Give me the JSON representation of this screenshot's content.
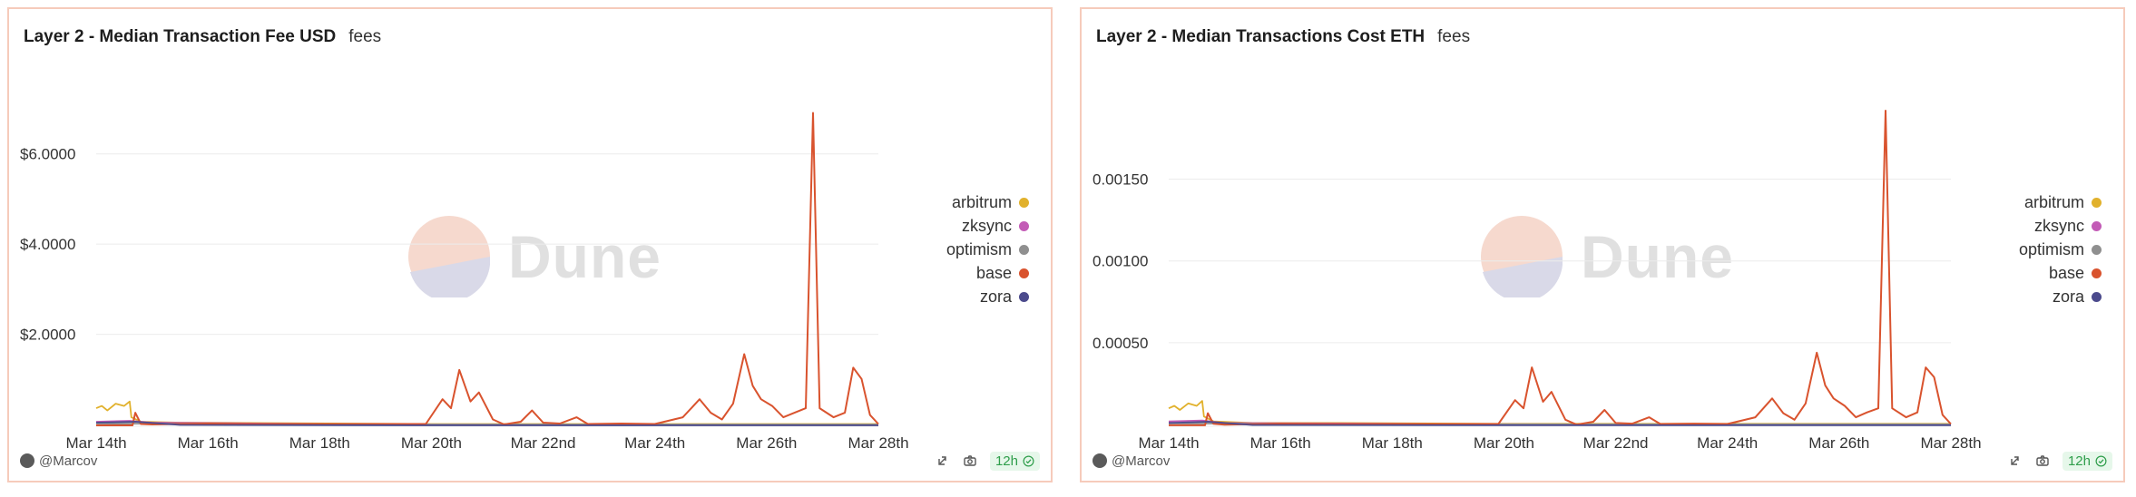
{
  "colors": {
    "arbitrum": "#e1b12c",
    "zksync": "#c35bb6",
    "optimism": "#8f8f8f",
    "base": "#d9532e",
    "zora": "#4b4a8c",
    "grid": "#ececec",
    "border": "#f6cbbb",
    "badge_bg": "#e6f7ea",
    "badge_text": "#2f9e4b"
  },
  "watermark": {
    "text": "Dune",
    "icon": "dune-logo"
  },
  "panels": [
    {
      "title": "Layer 2 - Median Transaction Fee USD",
      "subtitle": "fees",
      "author": "@Marcov",
      "refresh_badge": "12h",
      "icons": [
        "share-icon",
        "camera-icon",
        "check-circle-icon"
      ],
      "chart_data": {
        "type": "line",
        "y_ticks": [
          "$2.0000",
          "$4.0000",
          "$6.0000"
        ],
        "x_ticks": [
          "Mar 14th",
          "Mar 16th",
          "Mar 18th",
          "Mar 20th",
          "Mar 22nd",
          "Mar 24th",
          "Mar 26th",
          "Mar 28th"
        ],
        "ylim": [
          0,
          7
        ],
        "xlim": [
          0,
          14
        ],
        "legend_position": "right",
        "grid": true,
        "series": [
          {
            "name": "arbitrum",
            "color": "#e1b12c",
            "points": [
              [
                0,
                0.4
              ],
              [
                0.1,
                0.45
              ],
              [
                0.2,
                0.35
              ],
              [
                0.35,
                0.5
              ],
              [
                0.5,
                0.45
              ],
              [
                0.6,
                0.55
              ],
              [
                0.63,
                0.2
              ],
              [
                0.8,
                0.1
              ],
              [
                1.5,
                0.08
              ],
              [
                3,
                0.07
              ],
              [
                6,
                0.05
              ],
              [
                9,
                0.05
              ],
              [
                12,
                0.05
              ],
              [
                14,
                0.05
              ]
            ]
          },
          {
            "name": "zksync",
            "color": "#c35bb6",
            "points": [
              [
                0,
                0.1
              ],
              [
                0.6,
                0.12
              ],
              [
                1,
                0.08
              ],
              [
                3,
                0.06
              ],
              [
                6,
                0.04
              ],
              [
                9,
                0.03
              ],
              [
                12,
                0.03
              ],
              [
                14,
                0.03
              ]
            ]
          },
          {
            "name": "optimism",
            "color": "#8f8f8f",
            "points": [
              [
                0,
                0.06
              ],
              [
                3,
                0.05
              ],
              [
                6,
                0.04
              ],
              [
                9,
                0.04
              ],
              [
                12,
                0.04
              ],
              [
                14,
                0.04
              ]
            ]
          },
          {
            "name": "base",
            "color": "#d9532e",
            "points": [
              [
                0,
                0.02
              ],
              [
                0.65,
                0.02
              ],
              [
                0.7,
                0.3
              ],
              [
                0.8,
                0.05
              ],
              [
                1,
                0.04
              ],
              [
                2,
                0.06
              ],
              [
                3,
                0.05
              ],
              [
                5.9,
                0.05
              ],
              [
                6.2,
                0.6
              ],
              [
                6.35,
                0.4
              ],
              [
                6.5,
                1.25
              ],
              [
                6.7,
                0.55
              ],
              [
                6.85,
                0.75
              ],
              [
                7.1,
                0.15
              ],
              [
                7.3,
                0.04
              ],
              [
                7.6,
                0.1
              ],
              [
                7.8,
                0.35
              ],
              [
                8,
                0.08
              ],
              [
                8.3,
                0.06
              ],
              [
                8.6,
                0.2
              ],
              [
                8.8,
                0.05
              ],
              [
                9.4,
                0.06
              ],
              [
                10,
                0.05
              ],
              [
                10.5,
                0.2
              ],
              [
                10.8,
                0.6
              ],
              [
                11,
                0.3
              ],
              [
                11.2,
                0.15
              ],
              [
                11.4,
                0.5
              ],
              [
                11.6,
                1.6
              ],
              [
                11.75,
                0.9
              ],
              [
                11.9,
                0.6
              ],
              [
                12.1,
                0.45
              ],
              [
                12.3,
                0.2
              ],
              [
                12.5,
                0.3
              ],
              [
                12.7,
                0.4
              ],
              [
                12.83,
                6.95
              ],
              [
                12.95,
                0.4
              ],
              [
                13.2,
                0.2
              ],
              [
                13.4,
                0.3
              ],
              [
                13.55,
                1.3
              ],
              [
                13.7,
                1.05
              ],
              [
                13.85,
                0.25
              ],
              [
                14,
                0.05
              ]
            ]
          },
          {
            "name": "zora",
            "color": "#4b4a8c",
            "points": [
              [
                0,
                0.08
              ],
              [
                0.7,
                0.1
              ],
              [
                1.5,
                0.03
              ],
              [
                6,
                0.02
              ],
              [
                10,
                0.02
              ],
              [
                14,
                0.02
              ]
            ]
          }
        ]
      }
    },
    {
      "title": "Layer 2 - Median Transactions Cost ETH",
      "subtitle": "fees",
      "author": "@Marcov",
      "refresh_badge": "12h",
      "icons": [
        "share-icon",
        "camera-icon",
        "check-circle-icon"
      ],
      "chart_data": {
        "type": "line",
        "y_ticks": [
          "0.00050",
          "0.00100",
          "0.00150"
        ],
        "x_ticks": [
          "Mar 14th",
          "Mar 16th",
          "Mar 18th",
          "Mar 20th",
          "Mar 22nd",
          "Mar 24th",
          "Mar 26th",
          "Mar 28th"
        ],
        "ylim": [
          0,
          0.00193
        ],
        "xlim": [
          0,
          14
        ],
        "legend_position": "right",
        "grid": true,
        "series": [
          {
            "name": "arbitrum",
            "color": "#e1b12c",
            "points": [
              [
                0,
                0.00011
              ],
              [
                0.1,
                0.000125
              ],
              [
                0.2,
                0.0001
              ],
              [
                0.35,
                0.00014
              ],
              [
                0.5,
                0.000125
              ],
              [
                0.6,
                0.000155
              ],
              [
                0.63,
                6e-05
              ],
              [
                0.8,
                3e-05
              ],
              [
                1.5,
                2e-05
              ],
              [
                3,
                2e-05
              ],
              [
                6,
                1.5e-05
              ],
              [
                9,
                1.5e-05
              ],
              [
                12,
                1.5e-05
              ],
              [
                14,
                1.5e-05
              ]
            ]
          },
          {
            "name": "zksync",
            "color": "#c35bb6",
            "points": [
              [
                0,
                3e-05
              ],
              [
                0.6,
                3.5e-05
              ],
              [
                1,
                2e-05
              ],
              [
                3,
                1.7e-05
              ],
              [
                6,
                1.2e-05
              ],
              [
                9,
                1e-05
              ],
              [
                12,
                1e-05
              ],
              [
                14,
                1e-05
              ]
            ]
          },
          {
            "name": "optimism",
            "color": "#8f8f8f",
            "points": [
              [
                0,
                1.7e-05
              ],
              [
                3,
                1.4e-05
              ],
              [
                6,
                1.2e-05
              ],
              [
                9,
                1.2e-05
              ],
              [
                12,
                1.2e-05
              ],
              [
                14,
                1.2e-05
              ]
            ]
          },
          {
            "name": "base",
            "color": "#d9532e",
            "points": [
              [
                0,
                6e-06
              ],
              [
                0.65,
                6e-06
              ],
              [
                0.7,
                8e-05
              ],
              [
                0.8,
                1.5e-05
              ],
              [
                1,
                1e-05
              ],
              [
                2,
                1.6e-05
              ],
              [
                3,
                1.4e-05
              ],
              [
                5.9,
                1.4e-05
              ],
              [
                6.2,
                0.00016
              ],
              [
                6.35,
                0.00011
              ],
              [
                6.5,
                0.00036
              ],
              [
                6.7,
                0.00015
              ],
              [
                6.85,
                0.00021
              ],
              [
                7.1,
                4e-05
              ],
              [
                7.3,
                1e-05
              ],
              [
                7.6,
                2.8e-05
              ],
              [
                7.8,
                0.0001
              ],
              [
                8,
                2e-05
              ],
              [
                8.3,
                1.6e-05
              ],
              [
                8.6,
                5.5e-05
              ],
              [
                8.8,
                1.4e-05
              ],
              [
                9.4,
                1.6e-05
              ],
              [
                10,
                1.4e-05
              ],
              [
                10.5,
                5.5e-05
              ],
              [
                10.8,
                0.00017
              ],
              [
                11,
                8e-05
              ],
              [
                11.2,
                4e-05
              ],
              [
                11.4,
                0.00014
              ],
              [
                11.6,
                0.00045
              ],
              [
                11.75,
                0.00025
              ],
              [
                11.9,
                0.00017
              ],
              [
                12.1,
                0.000125
              ],
              [
                12.3,
                5.5e-05
              ],
              [
                12.5,
                8.5e-05
              ],
              [
                12.7,
                0.00011
              ],
              [
                12.83,
                0.00193
              ],
              [
                12.95,
                0.00011
              ],
              [
                13.2,
                5.5e-05
              ],
              [
                13.4,
                8.5e-05
              ],
              [
                13.55,
                0.00036
              ],
              [
                13.7,
                0.0003
              ],
              [
                13.85,
                7e-05
              ],
              [
                14,
                1.4e-05
              ]
            ]
          },
          {
            "name": "zora",
            "color": "#4b4a8c",
            "points": [
              [
                0,
                2e-05
              ],
              [
                0.7,
                2.8e-05
              ],
              [
                1.5,
                8e-06
              ],
              [
                6,
                6e-06
              ],
              [
                10,
                6e-06
              ],
              [
                14,
                6e-06
              ]
            ]
          }
        ]
      }
    }
  ]
}
